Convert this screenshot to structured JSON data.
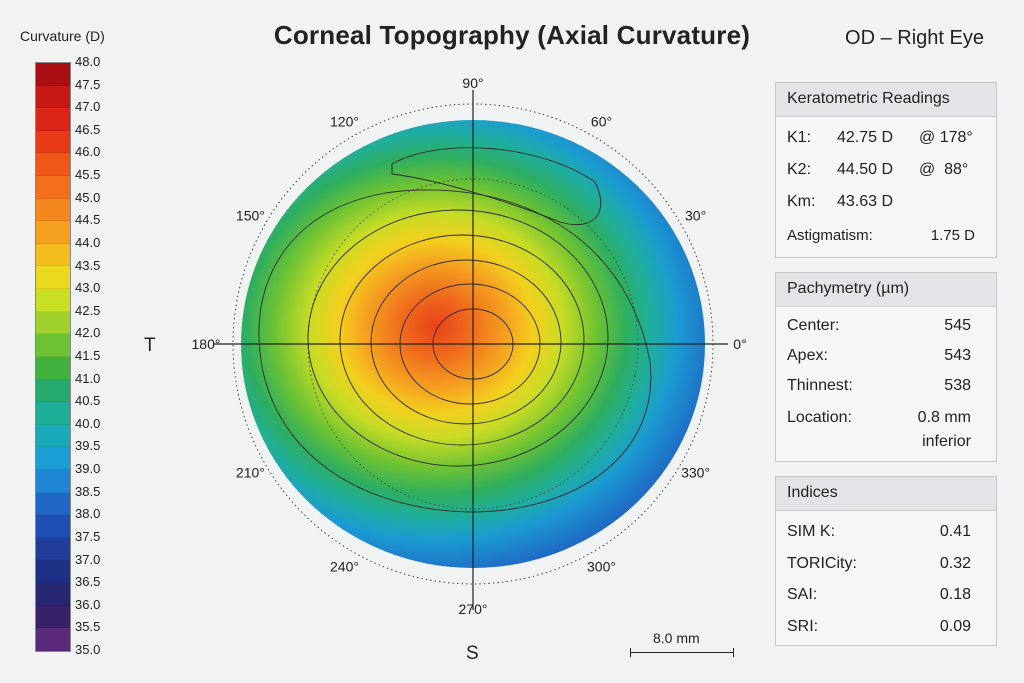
{
  "title": "Corneal Topography (Axial Curvature)",
  "eye_label": "OD – Right Eye",
  "scale": {
    "title": "Curvature (D)",
    "ticks": [
      "48.0",
      "47.5",
      "47.0",
      "46.5",
      "46.0",
      "45.5",
      "45.0",
      "44.5",
      "44.0",
      "43.5",
      "43.0",
      "42.5",
      "42.0",
      "41.5",
      "41.0",
      "40.5",
      "40.0",
      "39.5",
      "39.0",
      "38.5",
      "38.0",
      "37.5",
      "37.0",
      "36.5",
      "36.0",
      "35.5",
      "35.0"
    ],
    "colors": [
      "#a90f12",
      "#c81a15",
      "#dc2418",
      "#e83a17",
      "#ef5719",
      "#f26f1b",
      "#f4871d",
      "#f6a020",
      "#f5bc1f",
      "#ead91e",
      "#c9df22",
      "#9fd02b",
      "#6cc233",
      "#3fb13c",
      "#25a96c",
      "#1fae98",
      "#1aa9b9",
      "#1b9ed3",
      "#1f86d6",
      "#2166c7",
      "#1f4fb4",
      "#1f3e9b",
      "#1e2f86",
      "#262672",
      "#37226a",
      "#5a2b7a",
      "#6e2d7b"
    ]
  },
  "map": {
    "angle_labels": [
      "90°",
      "60°",
      "30°",
      "0°",
      "330°",
      "300°",
      "270°",
      "240°",
      "210°",
      "180°",
      "150°",
      "120°"
    ],
    "temporal_label": "T",
    "superior_label": "S"
  },
  "scale_bar": {
    "label": "8.0 mm"
  },
  "keratometric": {
    "title": "Keratometric Readings",
    "k1_label": "K1:",
    "k1_value": "42.75 D",
    "k1_axis": "@ 178°",
    "k2_label": "K2:",
    "k2_value": "44.50 D",
    "k2_axis": "@  88°",
    "km_label": "Km:",
    "km_value": "43.63 D",
    "astig_label": "Astigmatism:",
    "astig_value": "1.75 D"
  },
  "pachymetry": {
    "title": "Pachymetry (µm)",
    "rows": [
      {
        "label": "Center:",
        "value": "545"
      },
      {
        "label": "Apex:",
        "value": "543"
      },
      {
        "label": "Thinnest:",
        "value": "538"
      },
      {
        "label": "Location:",
        "value": "0.8 mm"
      }
    ],
    "location_line2": "inferior"
  },
  "indices": {
    "title": "Indices",
    "rows": [
      {
        "label": "SIM K:",
        "value": "0.41"
      },
      {
        "label": "TORICity:",
        "value": "0.32"
      },
      {
        "label": "SAI:",
        "value": "0.18"
      },
      {
        "label": "SRI:",
        "value": "0.09"
      }
    ]
  }
}
